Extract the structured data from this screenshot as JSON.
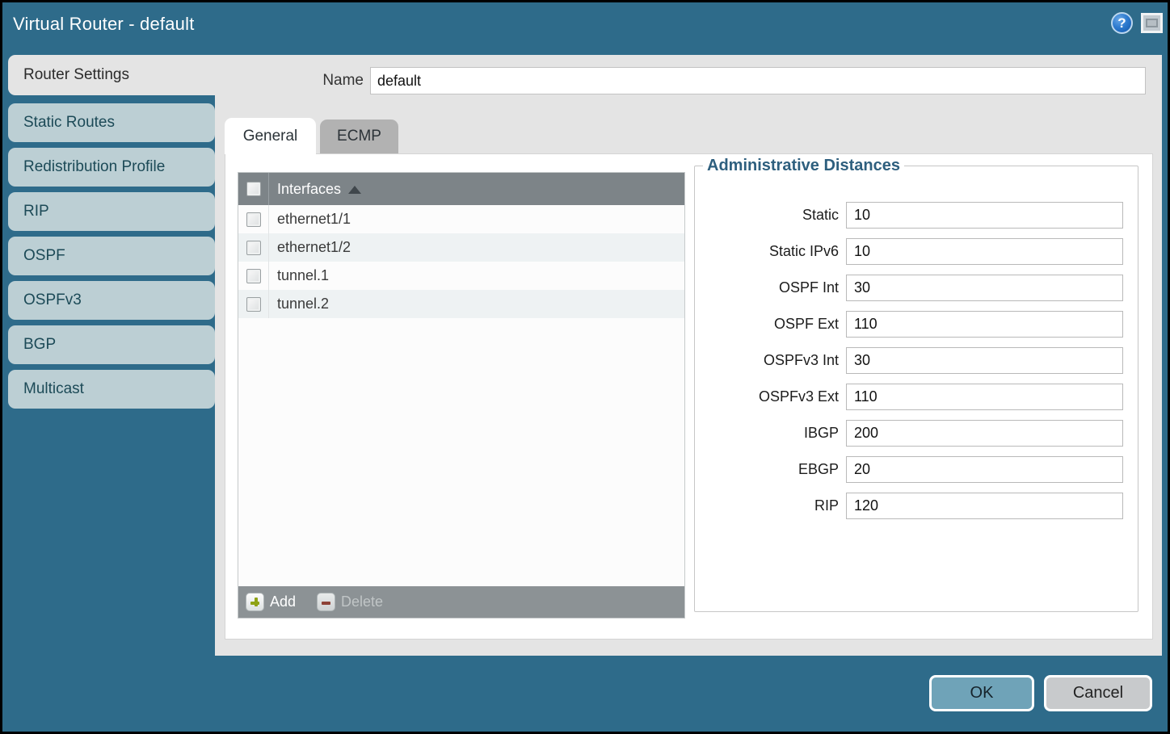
{
  "titlebar": {
    "title": "Virtual Router - default",
    "icons": [
      {
        "name": "help-icon",
        "glyph": "?"
      },
      {
        "name": "window-icon",
        "glyph": "window"
      }
    ]
  },
  "sidebar": {
    "items": [
      {
        "label": "Router Settings",
        "active": true
      },
      {
        "label": "Static Routes",
        "active": false
      },
      {
        "label": "Redistribution Profile",
        "active": false
      },
      {
        "label": "RIP",
        "active": false
      },
      {
        "label": "OSPF",
        "active": false
      },
      {
        "label": "OSPFv3",
        "active": false
      },
      {
        "label": "BGP",
        "active": false
      },
      {
        "label": "Multicast",
        "active": false
      }
    ]
  },
  "form": {
    "name_label": "Name",
    "name_value": "default"
  },
  "tabs": [
    {
      "label": "General",
      "active": true
    },
    {
      "label": "ECMP",
      "active": false
    }
  ],
  "interfaces_table": {
    "header": "Interfaces",
    "sort": "ascending",
    "header_checkbox_checked": false,
    "rows": [
      {
        "name": "ethernet1/1",
        "checked": false
      },
      {
        "name": "ethernet1/2",
        "checked": false
      },
      {
        "name": "tunnel.1",
        "checked": false
      },
      {
        "name": "tunnel.2",
        "checked": false
      }
    ],
    "footer": {
      "add_label": "Add",
      "delete_label": "Delete",
      "delete_disabled": true
    }
  },
  "admin_distances": {
    "title": "Administrative Distances",
    "fields": [
      {
        "label": "Static",
        "value": "10"
      },
      {
        "label": "Static IPv6",
        "value": "10"
      },
      {
        "label": "OSPF Int",
        "value": "30"
      },
      {
        "label": "OSPF Ext",
        "value": "110"
      },
      {
        "label": "OSPFv3 Int",
        "value": "30"
      },
      {
        "label": "OSPFv3 Ext",
        "value": "110"
      },
      {
        "label": "IBGP",
        "value": "200"
      },
      {
        "label": "EBGP",
        "value": "20"
      },
      {
        "label": "RIP",
        "value": "120"
      }
    ]
  },
  "actions": {
    "ok": "OK",
    "cancel": "Cancel"
  },
  "colors": {
    "window_teal": "#2e6b8a",
    "panel_gray": "#e4e4e4",
    "inactive_side_tab": "#bccfd4",
    "table_header": "#7d8488",
    "table_footer": "#8c9295",
    "row_stripe": "#eef2f3",
    "add_green": "#8fa315",
    "delete_red": "#8e4237",
    "ok_button": "#6fa3b8",
    "cancel_button": "#c8cacc",
    "legend_blue": "#2e5f7e",
    "help_blue": "#2f7cd0"
  }
}
